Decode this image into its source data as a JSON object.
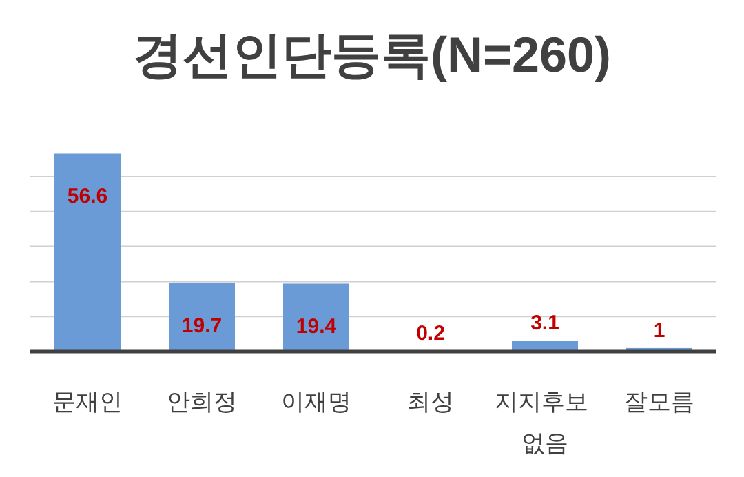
{
  "chart_data": {
    "type": "bar",
    "title": "경선인단등록(N=260)",
    "categories": [
      "문재인",
      "안희정",
      "이재명",
      "최성",
      "지지후보 없음",
      "잘모름"
    ],
    "values": [
      56.6,
      19.7,
      19.4,
      0.2,
      3.1,
      1
    ],
    "color": "#6a9bd6",
    "yticks": [
      {
        "value": 10,
        "label": null
      },
      {
        "value": 20,
        "label": null
      },
      {
        "value": 30,
        "label": null
      },
      {
        "value": 40,
        "label": null
      },
      {
        "value": 50,
        "label": null
      }
    ],
    "grid": "y",
    "data_labels": true,
    "tick_labels": "x"
  }
}
